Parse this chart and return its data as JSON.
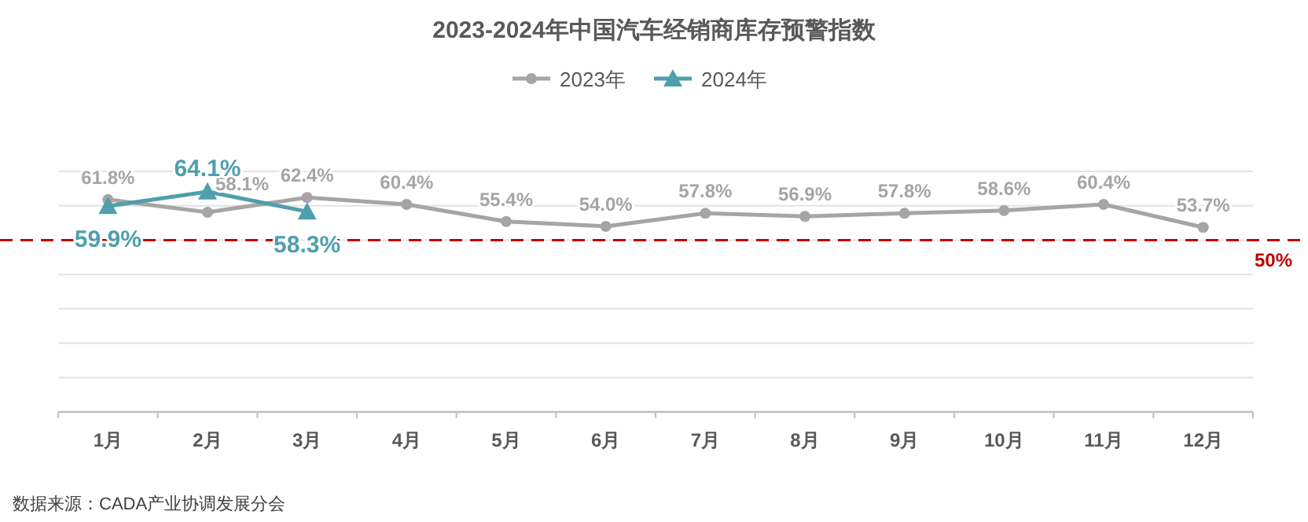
{
  "chart_data": {
    "type": "line",
    "title": "2023-2024年中国汽车经销商库存预警指数",
    "categories": [
      "1月",
      "2月",
      "3月",
      "4月",
      "5月",
      "6月",
      "7月",
      "8月",
      "9月",
      "10月",
      "11月",
      "12月"
    ],
    "series": [
      {
        "name": "2023年",
        "color": "#a5a5a5",
        "marker": "circle",
        "values": [
          61.8,
          58.1,
          62.4,
          60.4,
          55.4,
          54.0,
          57.8,
          56.9,
          57.8,
          58.6,
          60.4,
          53.7
        ],
        "value_labels": [
          "61.8%",
          "58.1%",
          "62.4%",
          "60.4%",
          "55.4%",
          "54.0%",
          "57.8%",
          "56.9%",
          "57.8%",
          "58.6%",
          "60.4%",
          "53.7%"
        ]
      },
      {
        "name": "2024年",
        "color": "#4f9fad",
        "marker": "triangle",
        "values": [
          59.9,
          64.1,
          58.3,
          null,
          null,
          null,
          null,
          null,
          null,
          null,
          null,
          null
        ],
        "value_labels": [
          "59.9%",
          "64.1%",
          "58.3%",
          null,
          null,
          null,
          null,
          null,
          null,
          null,
          null,
          null
        ]
      }
    ],
    "ylim": [
      0,
      70
    ],
    "yticks": [
      {
        "value": 0,
        "label": null
      },
      {
        "value": 10,
        "label": null
      },
      {
        "value": 20,
        "label": null
      },
      {
        "value": 30,
        "label": null
      },
      {
        "value": 40,
        "label": null
      },
      {
        "value": 50,
        "label": null
      },
      {
        "value": 60,
        "label": null
      },
      {
        "value": 70,
        "label": null
      }
    ],
    "tick_labels": "x",
    "grid": "y",
    "legend": "top",
    "ref_lines": [
      {
        "axis": "y",
        "value": 50,
        "label": "50%",
        "color": "#c00000",
        "line_style": "dashed"
      }
    ],
    "annotations": [
      "数据来源：CADA产业协调发展分会"
    ]
  }
}
